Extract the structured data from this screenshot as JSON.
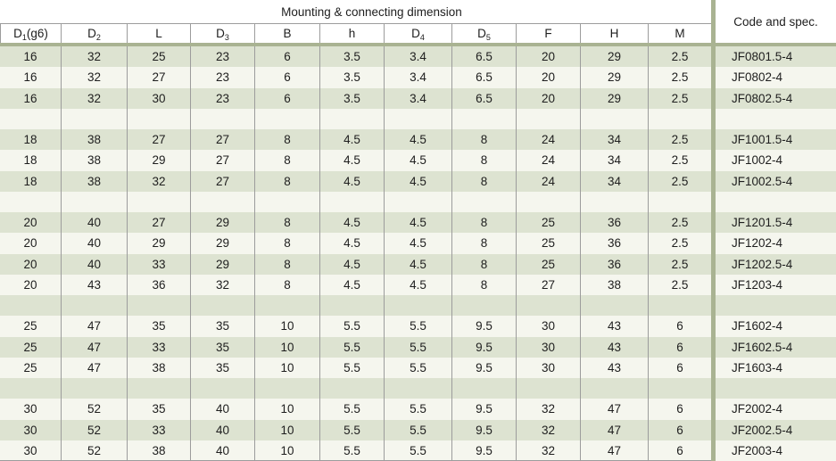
{
  "header": {
    "group_title": "Mounting & connecting dimension",
    "code_col_title": "Code and spec."
  },
  "columns": [
    {
      "key": "d1-g6",
      "base": "D",
      "sub": "1",
      "suffix": "(g6)"
    },
    {
      "key": "d2",
      "base": "D",
      "sub": "2"
    },
    {
      "key": "l",
      "base": "L"
    },
    {
      "key": "d3",
      "base": "D",
      "sub": "3"
    },
    {
      "key": "b",
      "base": "B"
    },
    {
      "key": "h",
      "base": "h"
    },
    {
      "key": "d4",
      "base": "D",
      "sub": "4"
    },
    {
      "key": "d5",
      "base": "D",
      "sub": "5"
    },
    {
      "key": "f",
      "base": "F"
    },
    {
      "key": "h2",
      "base": "H"
    },
    {
      "key": "m",
      "base": "M"
    }
  ],
  "rows": [
    {
      "values": [
        "16",
        "32",
        "25",
        "23",
        "6",
        "3.5",
        "3.4",
        "6.5",
        "20",
        "29",
        "2.5"
      ],
      "code": "JF0801.5-4"
    },
    {
      "values": [
        "16",
        "32",
        "27",
        "23",
        "6",
        "3.5",
        "3.4",
        "6.5",
        "20",
        "29",
        "2.5"
      ],
      "code": "JF0802-4"
    },
    {
      "values": [
        "16",
        "32",
        "30",
        "23",
        "6",
        "3.5",
        "3.4",
        "6.5",
        "20",
        "29",
        "2.5"
      ],
      "code": "JF0802.5-4"
    },
    {
      "spacer": true
    },
    {
      "values": [
        "18",
        "38",
        "27",
        "27",
        "8",
        "4.5",
        "4.5",
        "8",
        "24",
        "34",
        "2.5"
      ],
      "code": "JF1001.5-4"
    },
    {
      "values": [
        "18",
        "38",
        "29",
        "27",
        "8",
        "4.5",
        "4.5",
        "8",
        "24",
        "34",
        "2.5"
      ],
      "code": "JF1002-4"
    },
    {
      "values": [
        "18",
        "38",
        "32",
        "27",
        "8",
        "4.5",
        "4.5",
        "8",
        "24",
        "34",
        "2.5"
      ],
      "code": "JF1002.5-4"
    },
    {
      "spacer": true
    },
    {
      "values": [
        "20",
        "40",
        "27",
        "29",
        "8",
        "4.5",
        "4.5",
        "8",
        "25",
        "36",
        "2.5"
      ],
      "code": "JF1201.5-4"
    },
    {
      "values": [
        "20",
        "40",
        "29",
        "29",
        "8",
        "4.5",
        "4.5",
        "8",
        "25",
        "36",
        "2.5"
      ],
      "code": "JF1202-4"
    },
    {
      "values": [
        "20",
        "40",
        "33",
        "29",
        "8",
        "4.5",
        "4.5",
        "8",
        "25",
        "36",
        "2.5"
      ],
      "code": "JF1202.5-4"
    },
    {
      "values": [
        "20",
        "43",
        "36",
        "32",
        "8",
        "4.5",
        "4.5",
        "8",
        "27",
        "38",
        "2.5"
      ],
      "code": "JF1203-4"
    },
    {
      "spacer": true
    },
    {
      "values": [
        "25",
        "47",
        "35",
        "35",
        "10",
        "5.5",
        "5.5",
        "9.5",
        "30",
        "43",
        "6"
      ],
      "code": "JF1602-4"
    },
    {
      "values": [
        "25",
        "47",
        "33",
        "35",
        "10",
        "5.5",
        "5.5",
        "9.5",
        "30",
        "43",
        "6"
      ],
      "code": "JF1602.5-4"
    },
    {
      "values": [
        "25",
        "47",
        "38",
        "35",
        "10",
        "5.5",
        "5.5",
        "9.5",
        "30",
        "43",
        "6"
      ],
      "code": "JF1603-4"
    },
    {
      "spacer": true
    },
    {
      "values": [
        "30",
        "52",
        "35",
        "40",
        "10",
        "5.5",
        "5.5",
        "9.5",
        "32",
        "47",
        "6"
      ],
      "code": "JF2002-4"
    },
    {
      "values": [
        "30",
        "52",
        "33",
        "40",
        "10",
        "5.5",
        "5.5",
        "9.5",
        "32",
        "47",
        "6"
      ],
      "code": "JF2002.5-4"
    },
    {
      "values": [
        "30",
        "52",
        "38",
        "40",
        "10",
        "5.5",
        "5.5",
        "9.5",
        "32",
        "47",
        "6"
      ],
      "code": "JF2003-4"
    }
  ],
  "colors": {
    "stripe_green": "#dde3d1",
    "stripe_white": "#f5f6ee",
    "divider_olive": "#a9b392",
    "grid_line": "#9c9c9c",
    "text": "#1e1e1e"
  }
}
